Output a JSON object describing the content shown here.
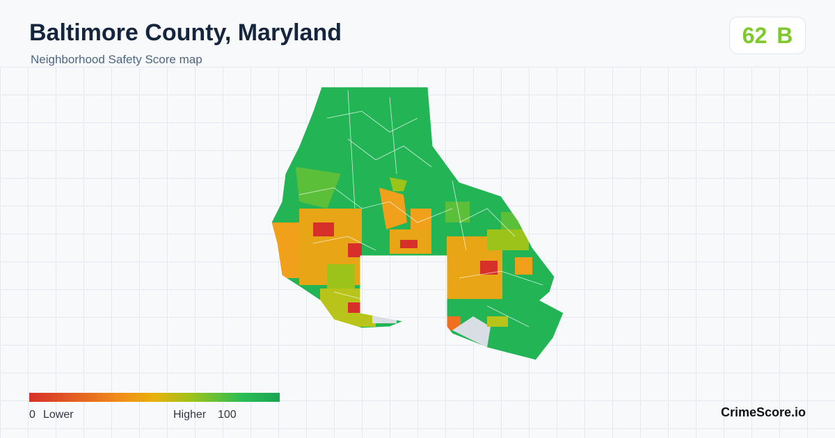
{
  "header": {
    "title": "Baltimore County, Maryland",
    "subtitle": "Neighborhood Safety Score map"
  },
  "score": {
    "value": 62,
    "grade": "B"
  },
  "legend": {
    "min": 0,
    "min_label": "Lower",
    "max_label": "Higher",
    "max": 100
  },
  "brand": "CrimeScore.io"
}
